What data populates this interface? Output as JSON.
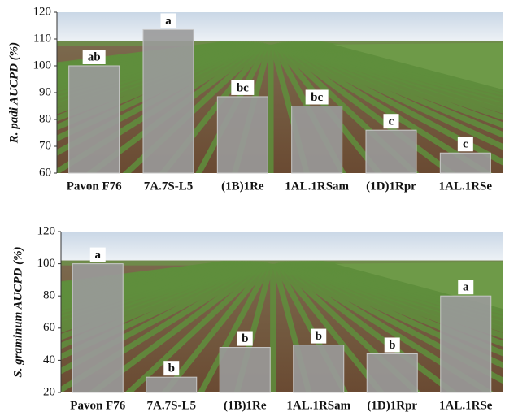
{
  "chart_data": [
    {
      "type": "bar",
      "ylabel": "R. padi AUCPD (%)",
      "categories": [
        "Pavon F76",
        "7A.7S-L5",
        "(1B)1Re",
        "1AL.1RSam",
        "(1D)1Rpr",
        "1AL.1RSe"
      ],
      "values": [
        100,
        113.5,
        88.5,
        85,
        76,
        67.5
      ],
      "annotations": [
        "ab",
        "a",
        "bc",
        "bc",
        "c",
        "c"
      ],
      "color": "#9a9a9a",
      "ylim": [
        60,
        120
      ],
      "yticks": [
        60,
        70,
        80,
        90,
        100,
        110,
        120
      ]
    },
    {
      "type": "bar",
      "ylabel": "S. graminum AUCPD (%)",
      "categories": [
        "Pavon F76",
        "7A.7S-L5",
        "(1B)1Re",
        "1AL.1RSam",
        "(1D)1Rpr",
        "1AL.1RSe"
      ],
      "values": [
        100,
        29.5,
        48,
        49.5,
        44,
        80
      ],
      "annotations": [
        "a",
        "b",
        "b",
        "b",
        "b",
        "a"
      ],
      "color": "#9a9a9a",
      "ylim": [
        20,
        120
      ],
      "yticks": [
        20,
        40,
        60,
        80,
        100,
        120
      ]
    }
  ]
}
